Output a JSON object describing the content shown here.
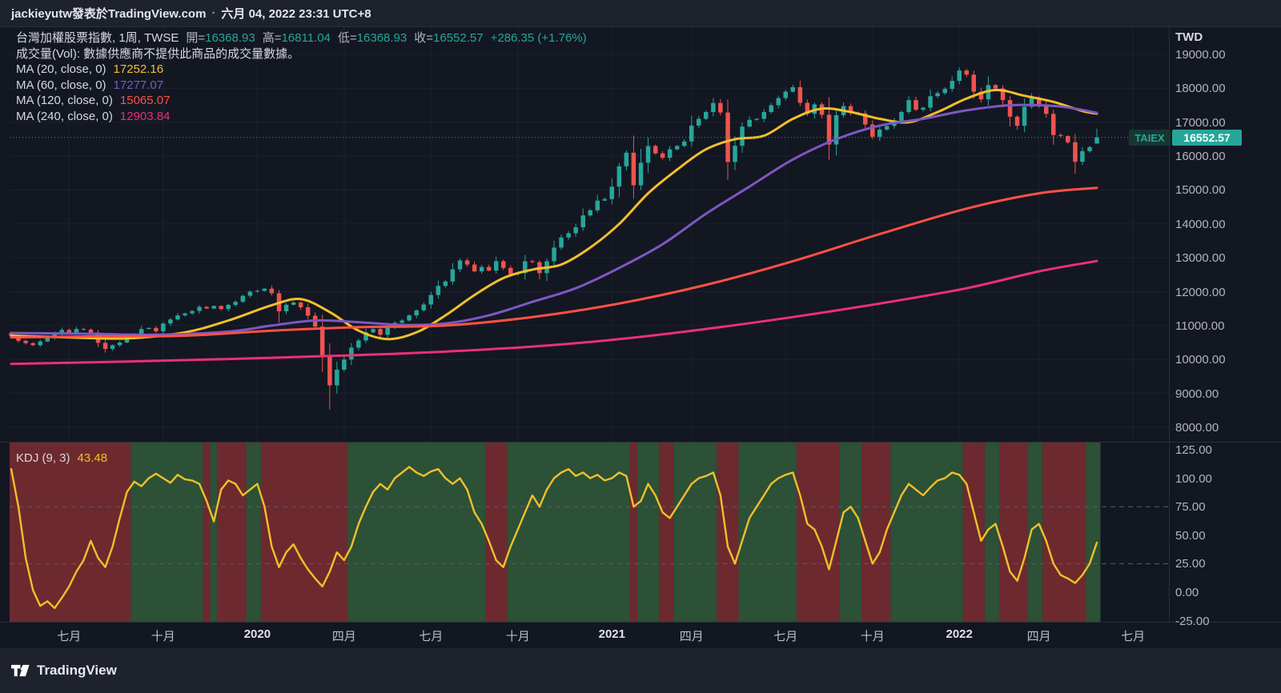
{
  "header": {
    "byline": "jackieyutw發表於TradingView.com",
    "separator": "·",
    "timestamp": "六月 04, 2022 23:31 UTC+8"
  },
  "legend": {
    "title": "台灣加權股票指數, 1周, TWSE",
    "ohlc": [
      {
        "label": "開=",
        "value": "16368.93"
      },
      {
        "label": "高=",
        "value": "16811.04"
      },
      {
        "label": "低=",
        "value": "16368.93"
      },
      {
        "label": "收=",
        "value": "16552.57"
      }
    ],
    "change": "+286.35 (+1.76%)",
    "volume_note": "成交量(Vol): 數據供應商不提供此商品的成交量數據。",
    "ma_rows": [
      {
        "label": "MA (20, close, 0)",
        "value": "17252.16",
        "color": "#f2c029"
      },
      {
        "label": "MA (60, close, 0)",
        "value": "17277.07",
        "color": "#7e57c2"
      },
      {
        "label": "MA (120, close, 0)",
        "value": "15065.07",
        "color": "#ff5144"
      },
      {
        "label": "MA (240, close, 0)",
        "value": "12903.84",
        "color": "#ec2f79"
      }
    ]
  },
  "kdj_legend": {
    "label": "KDJ (9, 3)",
    "value": "43.48"
  },
  "price_axis": {
    "currency": "TWD",
    "labels": [
      "19000.00",
      "18000.00",
      "17000.00",
      "16000.00",
      "15000.00",
      "14000.00",
      "13000.00",
      "12000.00",
      "11000.00",
      "10000.00",
      "9000.00",
      "8000.00"
    ]
  },
  "kdj_axis": {
    "labels": [
      "125.00",
      "100.00",
      "75.00",
      "50.00",
      "25.00",
      "0.00",
      "-25.00"
    ]
  },
  "time_axis": {
    "labels": [
      {
        "text": "七月",
        "week": 8,
        "bold": false
      },
      {
        "text": "十月",
        "week": 21,
        "bold": false
      },
      {
        "text": "2020",
        "week": 34,
        "bold": true
      },
      {
        "text": "四月",
        "week": 46,
        "bold": false
      },
      {
        "text": "七月",
        "week": 58,
        "bold": false
      },
      {
        "text": "十月",
        "week": 70,
        "bold": false
      },
      {
        "text": "2021",
        "week": 83,
        "bold": true
      },
      {
        "text": "四月",
        "week": 94,
        "bold": false
      },
      {
        "text": "七月",
        "week": 107,
        "bold": false
      },
      {
        "text": "十月",
        "week": 119,
        "bold": false
      },
      {
        "text": "2022",
        "week": 131,
        "bold": true
      },
      {
        "text": "四月",
        "week": 142,
        "bold": false
      },
      {
        "text": "七月",
        "week": 155,
        "bold": false
      }
    ]
  },
  "price_line": {
    "symbol": "TAIEX",
    "price": "16552.57"
  },
  "footer": {
    "brand": "TradingView"
  },
  "chart_data": {
    "type": "candlestick",
    "symbol": "TAIEX",
    "exchange": "TWSE",
    "interval": "1周",
    "currency": "TWD",
    "y_range": [
      8000,
      19000
    ],
    "y_step": 1000,
    "last": {
      "open": 16368.93,
      "high": 16811.04,
      "low": 16368.93,
      "close": 16552.57,
      "change": 286.35,
      "change_pct": 1.76
    },
    "colors": {
      "up": "#26a69a",
      "down": "#ef5350",
      "band_green": "#2c5136",
      "band_red": "#6d2a2e",
      "current_price": "#26a69a"
    },
    "closes": [
      10700,
      10550,
      10480,
      10420,
      10530,
      10640,
      10750,
      10870,
      10790,
      10900,
      10880,
      10790,
      10490,
      10310,
      10420,
      10500,
      10620,
      10760,
      10900,
      10930,
      10830,
      11060,
      11180,
      11300,
      11360,
      11430,
      11550,
      11500,
      11580,
      11490,
      11610,
      11700,
      11880,
      12000,
      12024,
      12090,
      11954,
      11421,
      11613,
      11680,
      11540,
      11290,
      10970,
      10128,
      9234,
      9698,
      9996,
      10350,
      10560,
      10800,
      10900,
      10730,
      10940,
      11080,
      11150,
      11300,
      11450,
      11621,
      11900,
      12170,
      12300,
      12660,
      12920,
      12800,
      12600,
      12728,
      12620,
      12900,
      12700,
      12515,
      12550,
      12900,
      12870,
      12546,
      12900,
      13300,
      13600,
      13723,
      13900,
      14250,
      14400,
      14687,
      14732,
      15100,
      15700,
      16100,
      15138,
      15802,
      16300,
      16080,
      15950,
      16200,
      16300,
      16431,
      16900,
      17100,
      17300,
      17566,
      17285,
      15827,
      16303,
      16870,
      17068,
      17100,
      17300,
      17500,
      17710,
      17900,
      18034,
      17572,
      17247,
      17526,
      17219,
      16341,
      17209,
      17474,
      17276,
      17260,
      16931,
      16571,
      16781,
      16888,
      17042,
      17299,
      17651,
      17369,
      17428,
      17768,
      17860,
      17982,
      18218,
      18526,
      18403,
      17899,
      17674,
      18096,
      17997,
      17652,
      17164,
      16894,
      17456,
      17718,
      17522,
      17245,
      16620,
      16592,
      16408,
      15832,
      16145,
      16266,
      16552.57
    ],
    "wick_overrides": {
      "44": {
        "low": 8523
      },
      "99": {
        "low": 15300
      },
      "131": {
        "high": 18619
      }
    },
    "ma": [
      {
        "name": "MA20",
        "period": 20,
        "color": "#f2c029",
        "last": 17252.16,
        "points": [
          [
            0,
            10700
          ],
          [
            8,
            10650
          ],
          [
            16,
            10620
          ],
          [
            24,
            10800
          ],
          [
            30,
            11150
          ],
          [
            36,
            11600
          ],
          [
            40,
            11780
          ],
          [
            44,
            11400
          ],
          [
            48,
            10850
          ],
          [
            52,
            10600
          ],
          [
            56,
            10800
          ],
          [
            60,
            11300
          ],
          [
            64,
            11900
          ],
          [
            68,
            12400
          ],
          [
            72,
            12650
          ],
          [
            76,
            12800
          ],
          [
            80,
            13300
          ],
          [
            84,
            14000
          ],
          [
            88,
            14900
          ],
          [
            92,
            15600
          ],
          [
            96,
            16200
          ],
          [
            100,
            16500
          ],
          [
            104,
            16600
          ],
          [
            108,
            17100
          ],
          [
            112,
            17400
          ],
          [
            116,
            17300
          ],
          [
            120,
            17100
          ],
          [
            124,
            17000
          ],
          [
            128,
            17300
          ],
          [
            132,
            17700
          ],
          [
            136,
            17950
          ],
          [
            140,
            17780
          ],
          [
            144,
            17600
          ],
          [
            148,
            17330
          ],
          [
            150,
            17252.16
          ]
        ]
      },
      {
        "name": "MA60",
        "period": 60,
        "color": "#7e57c2",
        "last": 17277.07,
        "points": [
          [
            0,
            10780
          ],
          [
            10,
            10760
          ],
          [
            20,
            10730
          ],
          [
            30,
            10820
          ],
          [
            36,
            11000
          ],
          [
            42,
            11150
          ],
          [
            48,
            11100
          ],
          [
            54,
            11020
          ],
          [
            60,
            11060
          ],
          [
            66,
            11300
          ],
          [
            72,
            11700
          ],
          [
            78,
            12100
          ],
          [
            84,
            12700
          ],
          [
            90,
            13400
          ],
          [
            96,
            14300
          ],
          [
            102,
            15100
          ],
          [
            108,
            15900
          ],
          [
            114,
            16500
          ],
          [
            120,
            16900
          ],
          [
            126,
            17100
          ],
          [
            132,
            17350
          ],
          [
            138,
            17500
          ],
          [
            144,
            17480
          ],
          [
            147,
            17400
          ],
          [
            150,
            17277.07
          ]
        ]
      },
      {
        "name": "MA120",
        "period": 120,
        "color": "#ff5144",
        "last": 15065.07,
        "points": [
          [
            0,
            10650
          ],
          [
            12,
            10680
          ],
          [
            24,
            10700
          ],
          [
            36,
            10850
          ],
          [
            48,
            10950
          ],
          [
            60,
            11000
          ],
          [
            72,
            11250
          ],
          [
            84,
            11650
          ],
          [
            96,
            12200
          ],
          [
            108,
            12900
          ],
          [
            120,
            13700
          ],
          [
            132,
            14450
          ],
          [
            142,
            14900
          ],
          [
            150,
            15065.07
          ]
        ]
      },
      {
        "name": "MA240",
        "period": 240,
        "color": "#ec2f79",
        "last": 12903.84,
        "points": [
          [
            0,
            9870
          ],
          [
            12,
            9920
          ],
          [
            24,
            9980
          ],
          [
            36,
            10050
          ],
          [
            48,
            10130
          ],
          [
            60,
            10230
          ],
          [
            72,
            10380
          ],
          [
            84,
            10600
          ],
          [
            96,
            10900
          ],
          [
            108,
            11250
          ],
          [
            120,
            11650
          ],
          [
            132,
            12100
          ],
          [
            142,
            12600
          ],
          [
            150,
            12903.84
          ]
        ]
      }
    ],
    "kdj": {
      "label": "KDJ (9, 3)",
      "color": "#f2c029",
      "last": 43.48,
      "dashed_levels": [
        75,
        25
      ],
      "values": [
        108,
        75,
        30,
        2,
        -12,
        -8,
        -14,
        -5,
        5,
        18,
        28,
        45,
        30,
        22,
        40,
        65,
        88,
        97,
        93,
        100,
        104,
        100,
        96,
        103,
        99,
        98,
        95,
        80,
        62,
        90,
        98,
        95,
        85,
        90,
        95,
        75,
        40,
        22,
        35,
        42,
        30,
        20,
        12,
        5,
        18,
        35,
        28,
        40,
        60,
        75,
        88,
        95,
        90,
        100,
        105,
        110,
        105,
        102,
        106,
        108,
        100,
        95,
        100,
        90,
        70,
        60,
        45,
        28,
        22,
        40,
        55,
        70,
        85,
        75,
        90,
        100,
        105,
        108,
        102,
        105,
        100,
        103,
        98,
        100,
        105,
        102,
        75,
        80,
        95,
        85,
        70,
        65,
        75,
        85,
        95,
        100,
        102,
        105,
        85,
        40,
        25,
        45,
        65,
        75,
        85,
        95,
        100,
        103,
        105,
        85,
        60,
        55,
        40,
        20,
        45,
        70,
        75,
        65,
        45,
        25,
        35,
        55,
        70,
        85,
        95,
        90,
        85,
        92,
        98,
        100,
        105,
        103,
        95,
        70,
        45,
        55,
        60,
        40,
        18,
        10,
        30,
        55,
        60,
        45,
        25,
        15,
        12,
        8,
        15,
        25,
        43.48
      ],
      "bands": [
        [
          0,
          17,
          "r"
        ],
        [
          17,
          27,
          "g"
        ],
        [
          27,
          28,
          "r"
        ],
        [
          28,
          29,
          "g"
        ],
        [
          29,
          33,
          "r"
        ],
        [
          33,
          35,
          "g"
        ],
        [
          35,
          47,
          "r"
        ],
        [
          47,
          66,
          "g"
        ],
        [
          66,
          69,
          "r"
        ],
        [
          69,
          86,
          "g"
        ],
        [
          86,
          87,
          "r"
        ],
        [
          87,
          90,
          "g"
        ],
        [
          90,
          92,
          "r"
        ],
        [
          92,
          98,
          "g"
        ],
        [
          98,
          101,
          "r"
        ],
        [
          101,
          109,
          "g"
        ],
        [
          109,
          115,
          "r"
        ],
        [
          115,
          118,
          "g"
        ],
        [
          118,
          122,
          "r"
        ],
        [
          122,
          132,
          "g"
        ],
        [
          132,
          135,
          "r"
        ],
        [
          135,
          137,
          "g"
        ],
        [
          137,
          141,
          "r"
        ],
        [
          141,
          143,
          "g"
        ],
        [
          143,
          149,
          "r"
        ],
        [
          149,
          151,
          "g"
        ]
      ]
    }
  }
}
